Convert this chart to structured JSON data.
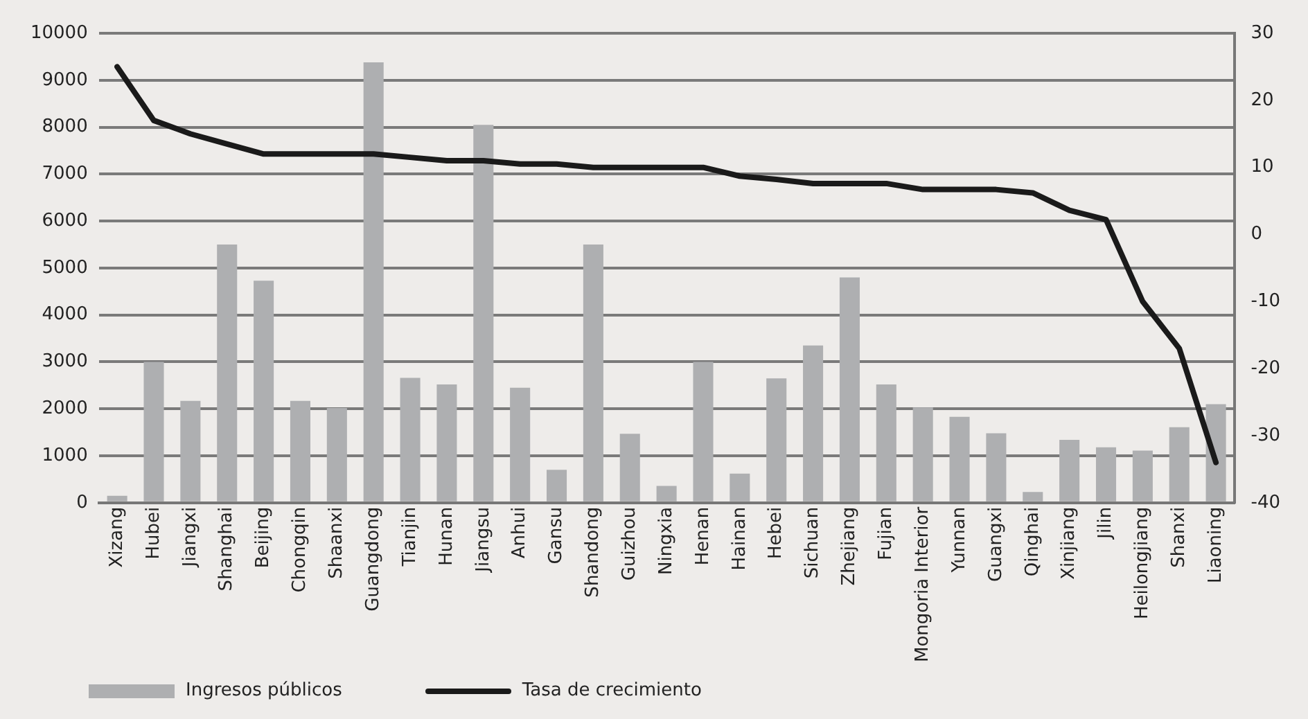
{
  "chart_data": {
    "type": "bar",
    "categories": [
      "Xizang",
      "Hubei",
      "Jiangxi",
      "Shanghai",
      "Beijing",
      "Chongqin",
      "Shaanxi",
      "Guangdong",
      "Tianjin",
      "Hunan",
      "Jiangsu",
      "Anhui",
      "Gansu",
      "Shandong",
      "Guizhou",
      "Ningxia",
      "Henan",
      "Hainan",
      "Hebei",
      "Sichuan",
      "Zhejiang",
      "Fujian",
      "Mongoria Interior",
      "Yunnan",
      "Guangxi",
      "Qinghai",
      "Xinjiang",
      "Jilin",
      "Heilongjiang",
      "Shanxi",
      "Liaoning"
    ],
    "series": [
      {
        "name": "Ingresos públicos",
        "color": "#aeafb1",
        "values": [
          150,
          3000,
          2170,
          5500,
          4730,
          2170,
          2020,
          9380,
          2660,
          2520,
          8050,
          2450,
          700,
          5500,
          1470,
          360,
          3000,
          620,
          2650,
          3350,
          4800,
          2520,
          2030,
          1830,
          1480,
          230,
          1340,
          1180,
          1110,
          1610,
          2100
        ]
      },
      {
        "name": "Tasa de crecimiento",
        "type": "line",
        "axis": "y2",
        "color": "#1a1a1a",
        "values": [
          25,
          17,
          15,
          13.5,
          12,
          12,
          12,
          12,
          11.5,
          11,
          11,
          10.5,
          10.5,
          10,
          10,
          10,
          10,
          8.7,
          8.2,
          7.6,
          7.6,
          7.6,
          6.7,
          6.7,
          6.7,
          6.2,
          3.6,
          2.2,
          -10,
          -17,
          -34
        ]
      }
    ],
    "ylim": [
      0,
      10000
    ],
    "yticks": [
      0,
      1000,
      2000,
      3000,
      4000,
      5000,
      6000,
      7000,
      8000,
      9000,
      10000
    ],
    "y2lim": [
      -40,
      30
    ],
    "y2ticks": [
      -40,
      -30,
      -20,
      -10,
      0,
      10,
      20,
      30
    ],
    "grid": "y",
    "legend": "bottom left",
    "marker": "none",
    "line_style": "solid"
  }
}
